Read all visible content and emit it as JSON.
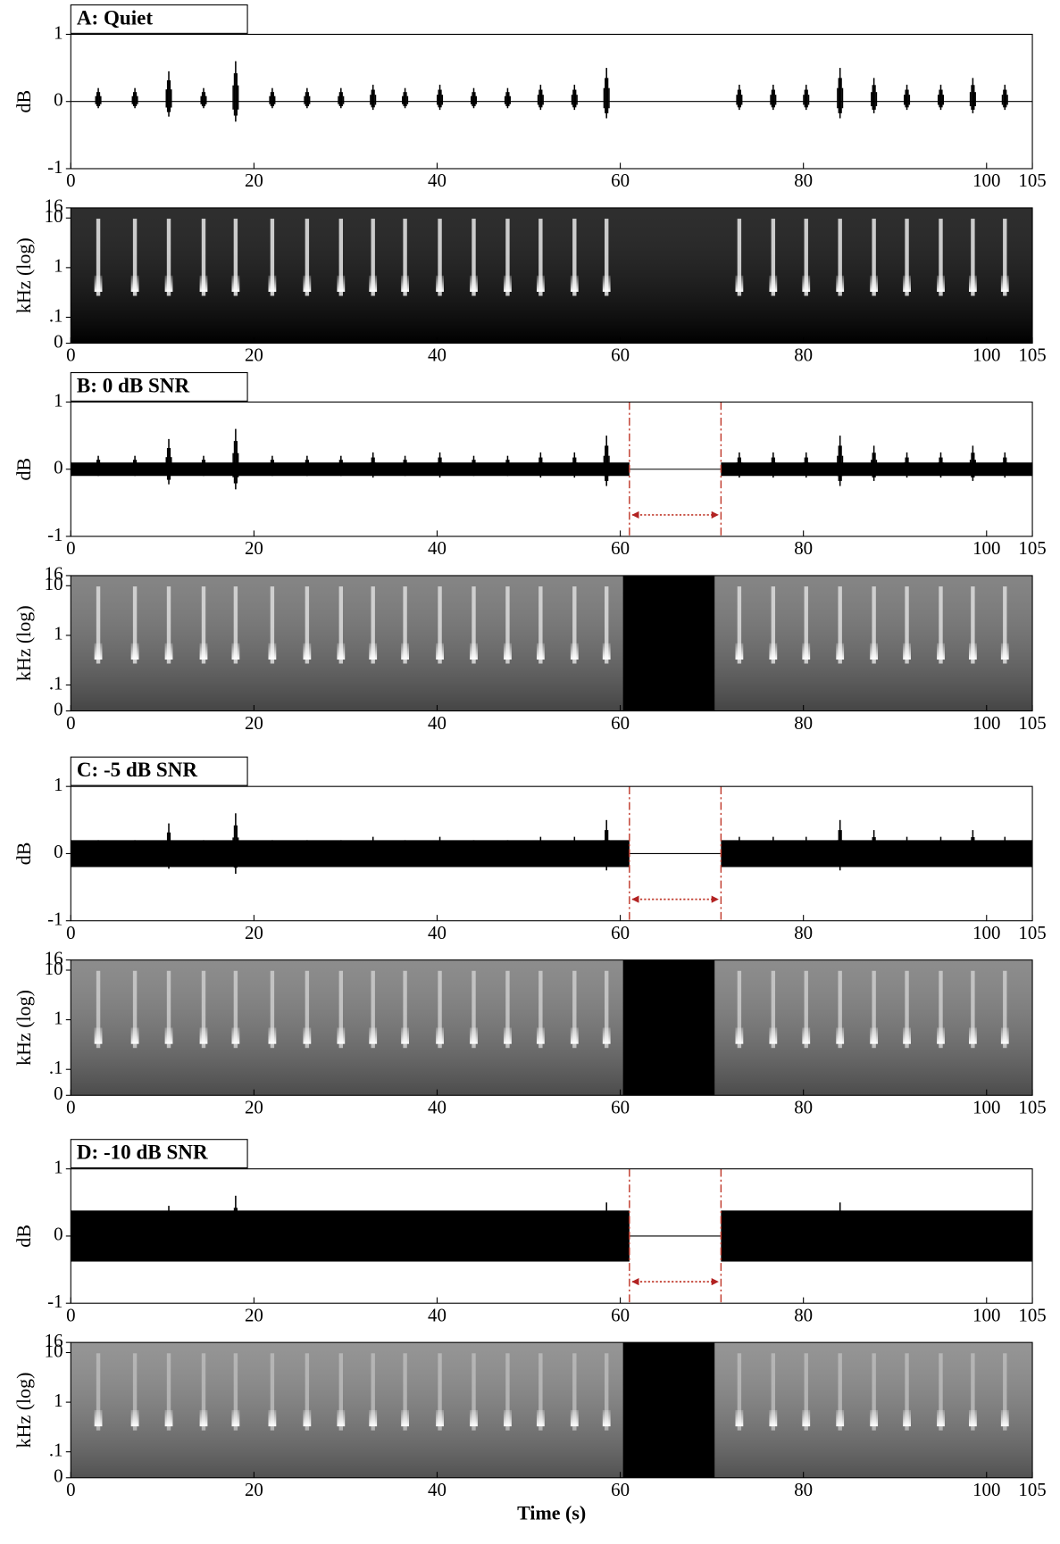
{
  "chart_data": [
    {
      "type": "waveform",
      "title": "A: Quiet",
      "ylabel": "dB",
      "xlim": [
        0,
        105
      ],
      "xticks": [
        0,
        20,
        40,
        60,
        80,
        100,
        105
      ],
      "ylim": [
        -1,
        1
      ],
      "yticks": [
        -1,
        0,
        1
      ],
      "color": "#000000",
      "noise_amplitude": 0,
      "x": [
        3,
        7,
        10.7,
        14.5,
        18,
        22,
        25.8,
        29.5,
        33,
        36.5,
        40.3,
        44,
        47.7,
        51.3,
        55,
        58.5,
        73,
        76.7,
        80.3,
        84,
        87.7,
        91.3,
        95,
        98.5,
        102
      ],
      "values": [
        0.2,
        0.2,
        0.45,
        0.2,
        0.6,
        0.2,
        0.2,
        0.2,
        0.25,
        0.2,
        0.25,
        0.2,
        0.2,
        0.25,
        0.25,
        0.5,
        0.25,
        0.25,
        0.25,
        0.5,
        0.35,
        0.25,
        0.25,
        0.35,
        0.25
      ]
    },
    {
      "type": "spectrogram",
      "ylabel": "kHz (log)",
      "yscale": "log",
      "xlim": [
        0,
        105
      ],
      "xticks": [
        0,
        20,
        40,
        60,
        80,
        100,
        105
      ],
      "ylim": [
        0.03,
        16
      ],
      "yticks": [
        {
          "value": 0.03,
          "label": "0"
        },
        {
          "value": 0.1,
          "label": ".1"
        },
        1,
        10,
        16
      ],
      "background": "#000000",
      "syllable_color": "#e8e8e8",
      "x": [
        3,
        7,
        10.7,
        14.5,
        18,
        22,
        25.8,
        29.5,
        33,
        36.5,
        40.3,
        44,
        47.7,
        51.3,
        55,
        58.5,
        73,
        76.7,
        80.3,
        84,
        87.7,
        91.3,
        95,
        98.5,
        102
      ]
    },
    {
      "type": "waveform",
      "title": "B: 0 dB SNR",
      "ylabel": "dB",
      "xlim": [
        0,
        105
      ],
      "xticks": [
        0,
        20,
        40,
        60,
        80,
        100,
        105
      ],
      "ylim": [
        -1,
        1
      ],
      "yticks": [
        -1,
        0,
        1
      ],
      "color": "#000000",
      "noise_amplitude": 0.1,
      "gap": [
        61,
        71
      ],
      "gap_color": "#c0392b",
      "x": [
        3,
        7,
        10.7,
        14.5,
        18,
        22,
        25.8,
        29.5,
        33,
        36.5,
        40.3,
        44,
        47.7,
        51.3,
        55,
        58.5,
        73,
        76.7,
        80.3,
        84,
        87.7,
        91.3,
        95,
        98.5,
        102
      ],
      "values": [
        0.2,
        0.2,
        0.45,
        0.2,
        0.6,
        0.2,
        0.2,
        0.2,
        0.25,
        0.2,
        0.25,
        0.2,
        0.2,
        0.25,
        0.25,
        0.5,
        0.25,
        0.25,
        0.25,
        0.5,
        0.35,
        0.25,
        0.25,
        0.35,
        0.25
      ]
    },
    {
      "type": "spectrogram",
      "ylabel": "kHz (log)",
      "yscale": "log",
      "xlim": [
        0,
        105
      ],
      "xticks": [
        0,
        20,
        40,
        60,
        80,
        100,
        105
      ],
      "ylim": [
        0.03,
        16
      ],
      "yticks": [
        {
          "value": 0.03,
          "label": "0"
        },
        {
          "value": 0.1,
          "label": ".1"
        },
        1,
        10,
        16
      ],
      "background": "#6a6a6a",
      "syllable_color": "#dddddd",
      "gap": [
        60.3,
        70.3
      ],
      "x": [
        3,
        7,
        10.7,
        14.5,
        18,
        22,
        25.8,
        29.5,
        33,
        36.5,
        40.3,
        44,
        47.7,
        51.3,
        55,
        58.5,
        73,
        76.7,
        80.3,
        84,
        87.7,
        91.3,
        95,
        98.5,
        102
      ]
    },
    {
      "type": "waveform",
      "title": "C: -5 dB SNR",
      "ylabel": "dB",
      "xlim": [
        0,
        105
      ],
      "xticks": [
        0,
        20,
        40,
        60,
        80,
        100,
        105
      ],
      "ylim": [
        -1,
        1
      ],
      "yticks": [
        -1,
        0,
        1
      ],
      "color": "#000000",
      "noise_amplitude": 0.2,
      "gap": [
        61,
        71
      ],
      "gap_color": "#c0392b",
      "x": [
        3,
        7,
        10.7,
        14.5,
        18,
        22,
        25.8,
        29.5,
        33,
        36.5,
        40.3,
        44,
        47.7,
        51.3,
        55,
        58.5,
        73,
        76.7,
        80.3,
        84,
        87.7,
        91.3,
        95,
        98.5,
        102
      ],
      "values": [
        0.2,
        0.2,
        0.45,
        0.2,
        0.6,
        0.2,
        0.2,
        0.2,
        0.25,
        0.2,
        0.25,
        0.2,
        0.2,
        0.25,
        0.25,
        0.5,
        0.25,
        0.25,
        0.25,
        0.5,
        0.35,
        0.25,
        0.25,
        0.35,
        0.25
      ]
    },
    {
      "type": "spectrogram",
      "ylabel": "kHz (log)",
      "yscale": "log",
      "xlim": [
        0,
        105
      ],
      "xticks": [
        0,
        20,
        40,
        60,
        80,
        100,
        105
      ],
      "ylim": [
        0.03,
        16
      ],
      "yticks": [
        {
          "value": 0.03,
          "label": "0"
        },
        {
          "value": 0.1,
          "label": ".1"
        },
        1,
        10,
        16
      ],
      "background": "#747474",
      "syllable_color": "#cccccc",
      "gap": [
        60.3,
        70.3
      ],
      "x": [
        3,
        7,
        10.7,
        14.5,
        18,
        22,
        25.8,
        29.5,
        33,
        36.5,
        40.3,
        44,
        47.7,
        51.3,
        55,
        58.5,
        73,
        76.7,
        80.3,
        84,
        87.7,
        91.3,
        95,
        98.5,
        102
      ]
    },
    {
      "type": "waveform",
      "title": "D: -10 dB SNR",
      "ylabel": "dB",
      "xlim": [
        0,
        105
      ],
      "xticks": [
        0,
        20,
        40,
        60,
        80,
        100,
        105
      ],
      "ylim": [
        -1,
        1
      ],
      "yticks": [
        -1,
        0,
        1
      ],
      "color": "#000000",
      "noise_amplitude": 0.38,
      "gap": [
        61,
        71
      ],
      "gap_color": "#c0392b",
      "x": [
        3,
        7,
        10.7,
        14.5,
        18,
        22,
        25.8,
        29.5,
        33,
        36.5,
        40.3,
        44,
        47.7,
        51.3,
        55,
        58.5,
        73,
        76.7,
        80.3,
        84,
        87.7,
        91.3,
        95,
        98.5,
        102
      ],
      "values": [
        0.2,
        0.2,
        0.45,
        0.2,
        0.6,
        0.2,
        0.2,
        0.2,
        0.25,
        0.2,
        0.25,
        0.2,
        0.2,
        0.25,
        0.25,
        0.5,
        0.25,
        0.25,
        0.25,
        0.5,
        0.35,
        0.25,
        0.25,
        0.35,
        0.25
      ]
    },
    {
      "type": "spectrogram",
      "ylabel": "kHz (log)",
      "yscale": "log",
      "xlabel": "Time (s)",
      "xlim": [
        0,
        105
      ],
      "xticks": [
        0,
        20,
        40,
        60,
        80,
        100,
        105
      ],
      "ylim": [
        0.03,
        16
      ],
      "yticks": [
        {
          "value": 0.03,
          "label": "0"
        },
        {
          "value": 0.1,
          "label": ".1"
        },
        1,
        10,
        16
      ],
      "background": "#7e7e7e",
      "syllable_color": "#bbbbbb",
      "gap": [
        60.3,
        70.3
      ],
      "x": [
        3,
        7,
        10.7,
        14.5,
        18,
        22,
        25.8,
        29.5,
        33,
        36.5,
        40.3,
        44,
        47.7,
        51.3,
        55,
        58.5,
        73,
        76.7,
        80.3,
        84,
        87.7,
        91.3,
        95,
        98.5,
        102
      ]
    }
  ]
}
